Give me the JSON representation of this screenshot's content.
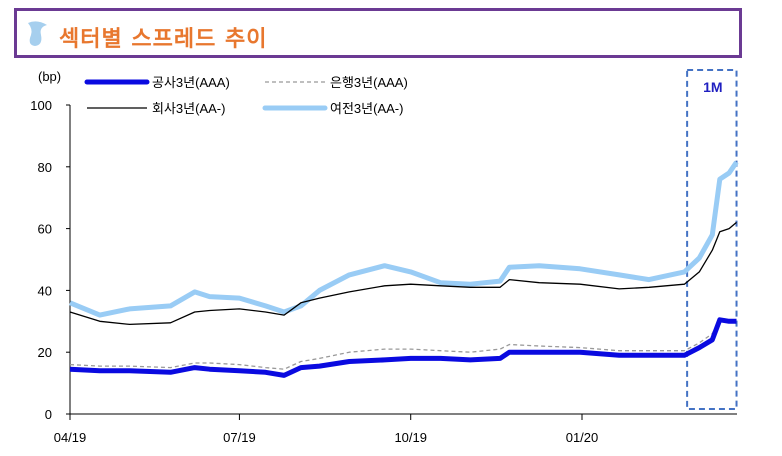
{
  "title": "섹터별 스프레드 추이",
  "title_icon": "droplet-logo-icon",
  "colors": {
    "title": "#e8772e",
    "border": "#6b3a93",
    "highlight_box": "#4472c4",
    "highlight_label": "#1f1fc0"
  },
  "chart_data": {
    "type": "line",
    "ylabel": "(bp)",
    "ylim": [
      0,
      100
    ],
    "yticks": [
      "0",
      "20",
      "40",
      "60",
      "80",
      "100"
    ],
    "xticks": [
      {
        "label": "04/19",
        "date": "2019-04-01"
      },
      {
        "label": "07/19",
        "date": "2019-07-01"
      },
      {
        "label": "10/19",
        "date": "2019-10-01"
      },
      {
        "label": "01/20",
        "date": "2020-01-01"
      }
    ],
    "xlim": [
      "2019-04-01",
      "2020-03-24"
    ],
    "grid": false,
    "legend_position": "top-left",
    "highlight": {
      "label": "1M",
      "from": "2020-02-27",
      "to": "2020-03-24"
    },
    "x": [
      "2019-04-01",
      "2019-04-17",
      "2019-05-03",
      "2019-05-25",
      "2019-06-07",
      "2019-06-15",
      "2019-07-01",
      "2019-07-15",
      "2019-07-25",
      "2019-08-03",
      "2019-08-13",
      "2019-08-29",
      "2019-09-17",
      "2019-10-01",
      "2019-10-17",
      "2019-11-02",
      "2019-11-18",
      "2019-11-23",
      "2019-12-09",
      "2019-12-31",
      "2020-01-21",
      "2020-02-06",
      "2020-02-25",
      "2020-03-04",
      "2020-03-11",
      "2020-03-15",
      "2020-03-20",
      "2020-03-24"
    ],
    "series": [
      {
        "name": "공사3년(AAA)",
        "color": "#0a0ae0",
        "style": "thick",
        "values": [
          14.5,
          14,
          14,
          13.5,
          15,
          14.5,
          14,
          13.5,
          12.5,
          15,
          15.5,
          17,
          17.5,
          18,
          18,
          17.5,
          18,
          20,
          20,
          20,
          19,
          19,
          19,
          21.5,
          24,
          30.5,
          30,
          30
        ]
      },
      {
        "name": "은행3년(AAA)",
        "color": "#999999",
        "style": "dashed",
        "values": [
          16,
          15.5,
          15.5,
          15,
          16.5,
          16.5,
          16,
          15,
          14.5,
          17,
          18,
          20,
          21,
          21,
          20.5,
          20,
          21,
          22.5,
          22,
          21.5,
          20.5,
          20.5,
          20.5,
          23,
          26,
          31,
          30.5,
          30
        ]
      },
      {
        "name": "회사3년(AA-)",
        "color": "#000000",
        "style": "thin",
        "values": [
          33,
          30,
          29,
          29.5,
          33,
          33.5,
          34,
          33,
          32,
          36,
          37.5,
          39.5,
          41.5,
          42,
          41.5,
          41,
          41,
          43.5,
          42.5,
          42,
          40.5,
          41,
          42,
          46,
          53,
          59,
          60,
          62
        ]
      },
      {
        "name": "여전3년(AA-)",
        "color": "#99ccf5",
        "style": "thick",
        "values": [
          36,
          32,
          34,
          35,
          39.5,
          38,
          37.5,
          35,
          33,
          35,
          40,
          45,
          48,
          46,
          42.5,
          42,
          43,
          47.5,
          48,
          47,
          45,
          43.5,
          46,
          50.5,
          58,
          76,
          78,
          81.5
        ]
      }
    ]
  }
}
